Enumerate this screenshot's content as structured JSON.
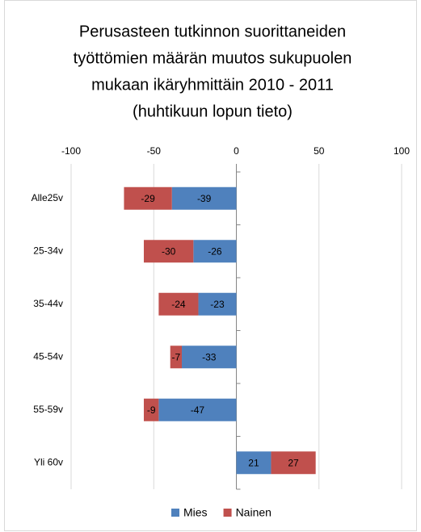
{
  "chart_data": {
    "type": "stacked_barh",
    "title": [
      "Perusasteen tutkinnon suorittaneiden",
      "työttömien määrän muutos sukupuolen",
      "mukaan ikäryhmittäin 2010 - 2011",
      "(huhtikuun lopun tieto)"
    ],
    "categories": [
      "Alle25v",
      "25-34v",
      "35-44v",
      "45-54v",
      "55-59v",
      "Yli 60v"
    ],
    "series": [
      {
        "name": "Mies",
        "color": "#4f81bd",
        "values": [
          -39,
          -26,
          -23,
          -33,
          -47,
          21
        ]
      },
      {
        "name": "Nainen",
        "color": "#c0504d",
        "values": [
          -29,
          -30,
          -24,
          -7,
          -9,
          27
        ]
      }
    ],
    "xlim": [
      -100,
      100
    ],
    "xticks": [
      -100,
      -50,
      0,
      50,
      100
    ],
    "grid": true,
    "legend": "bottom"
  }
}
